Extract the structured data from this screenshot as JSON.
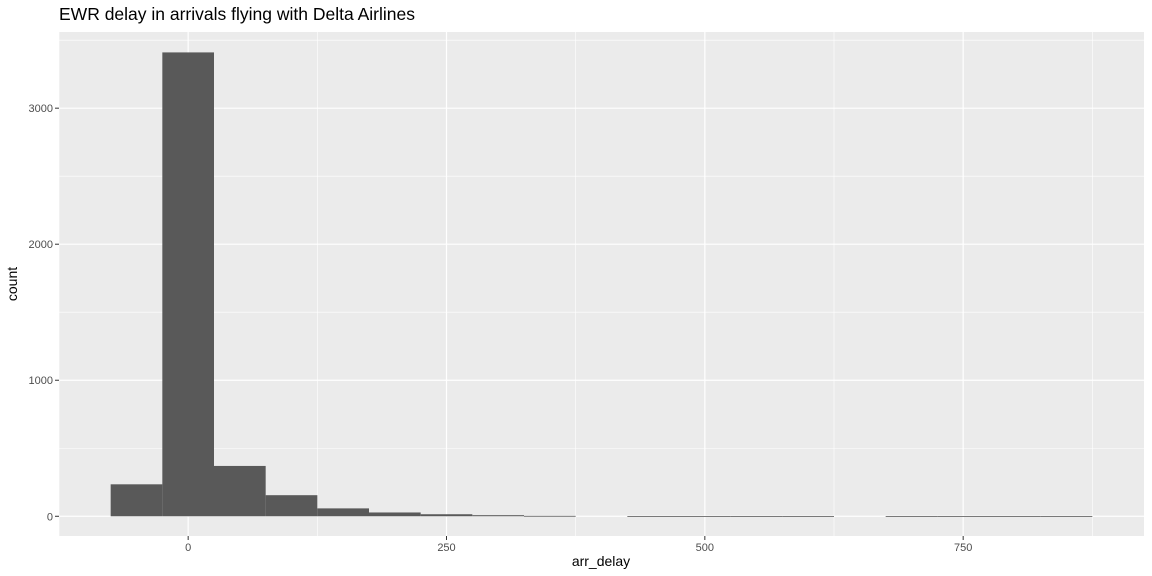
{
  "chart_data": {
    "type": "bar",
    "title": "EWR delay in arrivals flying with Delta Airlines",
    "xlabel": "arr_delay",
    "ylabel": "count",
    "xlim": [
      -125,
      925
    ],
    "ylim": [
      -145,
      3560
    ],
    "binwidth": 50,
    "bins": [
      {
        "center": -50,
        "count": 235
      },
      {
        "center": 0,
        "count": 3410
      },
      {
        "center": 50,
        "count": 370
      },
      {
        "center": 100,
        "count": 155
      },
      {
        "center": 150,
        "count": 58
      },
      {
        "center": 200,
        "count": 28
      },
      {
        "center": 250,
        "count": 15
      },
      {
        "center": 300,
        "count": 8
      },
      {
        "center": 350,
        "count": 3
      },
      {
        "center": 400,
        "count": 0
      },
      {
        "center": 450,
        "count": 1
      },
      {
        "center": 500,
        "count": 1
      },
      {
        "center": 550,
        "count": 1
      },
      {
        "center": 600,
        "count": 1
      },
      {
        "center": 650,
        "count": 0
      },
      {
        "center": 700,
        "count": 1
      },
      {
        "center": 750,
        "count": 1
      },
      {
        "center": 800,
        "count": 1
      },
      {
        "center": 850,
        "count": 1
      }
    ],
    "x_ticks": [
      0,
      250,
      500,
      750
    ],
    "x_tick_labels": [
      "0",
      "250",
      "500",
      "750"
    ],
    "y_ticks": [
      0,
      1000,
      2000,
      3000
    ],
    "y_tick_labels": [
      "0",
      "1000",
      "2000",
      "3000"
    ],
    "grid": true,
    "colors": {
      "panel": "#ebebeb",
      "grid": "#ffffff",
      "bar": "#595959"
    }
  }
}
